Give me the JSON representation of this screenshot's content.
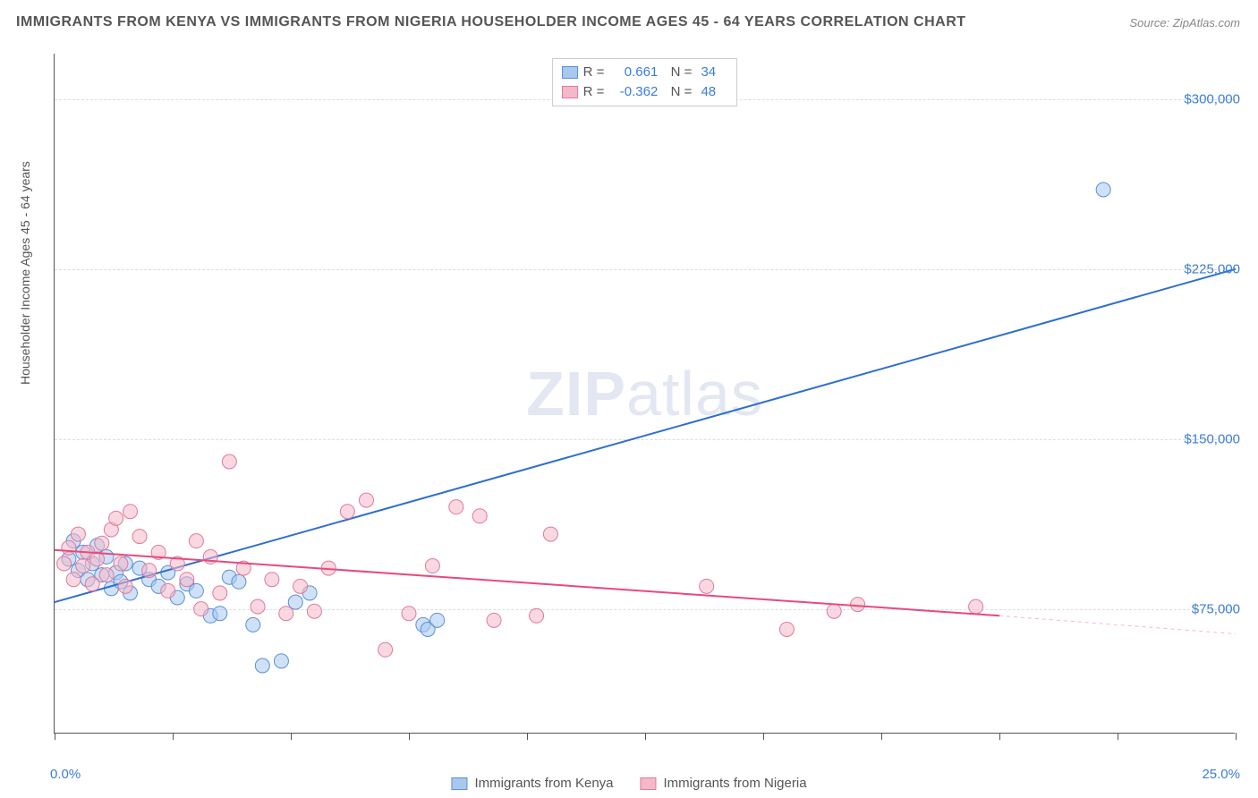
{
  "title": "IMMIGRANTS FROM KENYA VS IMMIGRANTS FROM NIGERIA HOUSEHOLDER INCOME AGES 45 - 64 YEARS CORRELATION CHART",
  "source": "Source: ZipAtlas.com",
  "y_axis_label": "Householder Income Ages 45 - 64 years",
  "watermark_bold": "ZIP",
  "watermark_light": "atlas",
  "chart": {
    "type": "scatter",
    "x_min": 0.0,
    "x_max": 25.0,
    "x_label_min": "0.0%",
    "x_label_max": "25.0%",
    "x_ticks": [
      0,
      2.5,
      5,
      7.5,
      10,
      12.5,
      15,
      17.5,
      20,
      22.5,
      25
    ],
    "y_min": 20000,
    "y_max": 320000,
    "y_ticks": [
      {
        "value": 75000,
        "label": "$75,000"
      },
      {
        "value": 150000,
        "label": "$150,000"
      },
      {
        "value": 225000,
        "label": "$225,000"
      },
      {
        "value": 300000,
        "label": "$300,000"
      }
    ],
    "background_color": "#ffffff",
    "grid_color": "#dddddd",
    "series": [
      {
        "name": "Immigrants from Kenya",
        "color_fill": "#a8c8f0",
        "color_stroke": "#5b8fd6",
        "r_value": "0.661",
        "n_value": "34",
        "marker_radius": 8,
        "trend": {
          "x1": 0,
          "y1": 78000,
          "x2": 25,
          "y2": 225000,
          "color": "#2e6fd0",
          "width": 2
        },
        "points": [
          [
            0.3,
            97000
          ],
          [
            0.4,
            105000
          ],
          [
            0.5,
            92000
          ],
          [
            0.6,
            100000
          ],
          [
            0.7,
            88000
          ],
          [
            0.8,
            95000
          ],
          [
            0.9,
            103000
          ],
          [
            1.0,
            90000
          ],
          [
            1.1,
            98000
          ],
          [
            1.2,
            84000
          ],
          [
            1.3,
            91000
          ],
          [
            1.4,
            87000
          ],
          [
            1.5,
            95000
          ],
          [
            1.6,
            82000
          ],
          [
            1.8,
            93000
          ],
          [
            2.0,
            88000
          ],
          [
            2.2,
            85000
          ],
          [
            2.4,
            91000
          ],
          [
            2.6,
            80000
          ],
          [
            2.8,
            86000
          ],
          [
            3.0,
            83000
          ],
          [
            3.3,
            72000
          ],
          [
            3.5,
            73000
          ],
          [
            3.7,
            89000
          ],
          [
            3.9,
            87000
          ],
          [
            4.2,
            68000
          ],
          [
            4.4,
            50000
          ],
          [
            4.8,
            52000
          ],
          [
            5.1,
            78000
          ],
          [
            5.4,
            82000
          ],
          [
            7.8,
            68000
          ],
          [
            7.9,
            66000
          ],
          [
            8.1,
            70000
          ],
          [
            22.2,
            260000
          ]
        ]
      },
      {
        "name": "Immigrants from Nigeria",
        "color_fill": "#f5b8c8",
        "color_stroke": "#e07a9a",
        "r_value": "-0.362",
        "n_value": "48",
        "marker_radius": 8,
        "trend": {
          "x1": 0,
          "y1": 101000,
          "x2": 20,
          "y2": 72000,
          "color": "#e84a7a",
          "width": 2
        },
        "trend_dashed": {
          "x1": 20,
          "y1": 72000,
          "x2": 25,
          "y2": 64000,
          "color": "#f5b8c8",
          "width": 1
        },
        "points": [
          [
            0.2,
            95000
          ],
          [
            0.3,
            102000
          ],
          [
            0.4,
            88000
          ],
          [
            0.5,
            108000
          ],
          [
            0.6,
            94000
          ],
          [
            0.7,
            100000
          ],
          [
            0.8,
            86000
          ],
          [
            0.9,
            97000
          ],
          [
            1.0,
            104000
          ],
          [
            1.1,
            90000
          ],
          [
            1.2,
            110000
          ],
          [
            1.3,
            115000
          ],
          [
            1.4,
            95000
          ],
          [
            1.5,
            85000
          ],
          [
            1.6,
            118000
          ],
          [
            1.8,
            107000
          ],
          [
            2.0,
            92000
          ],
          [
            2.2,
            100000
          ],
          [
            2.4,
            83000
          ],
          [
            2.6,
            95000
          ],
          [
            2.8,
            88000
          ],
          [
            3.0,
            105000
          ],
          [
            3.1,
            75000
          ],
          [
            3.3,
            98000
          ],
          [
            3.5,
            82000
          ],
          [
            3.7,
            140000
          ],
          [
            4.0,
            93000
          ],
          [
            4.3,
            76000
          ],
          [
            4.6,
            88000
          ],
          [
            4.9,
            73000
          ],
          [
            5.2,
            85000
          ],
          [
            5.5,
            74000
          ],
          [
            5.8,
            93000
          ],
          [
            6.2,
            118000
          ],
          [
            6.6,
            123000
          ],
          [
            7.0,
            57000
          ],
          [
            7.5,
            73000
          ],
          [
            8.0,
            94000
          ],
          [
            8.5,
            120000
          ],
          [
            9.0,
            116000
          ],
          [
            9.3,
            70000
          ],
          [
            10.2,
            72000
          ],
          [
            10.5,
            108000
          ],
          [
            13.8,
            85000
          ],
          [
            15.5,
            66000
          ],
          [
            16.5,
            74000
          ],
          [
            17.0,
            77000
          ],
          [
            19.5,
            76000
          ]
        ]
      }
    ]
  }
}
